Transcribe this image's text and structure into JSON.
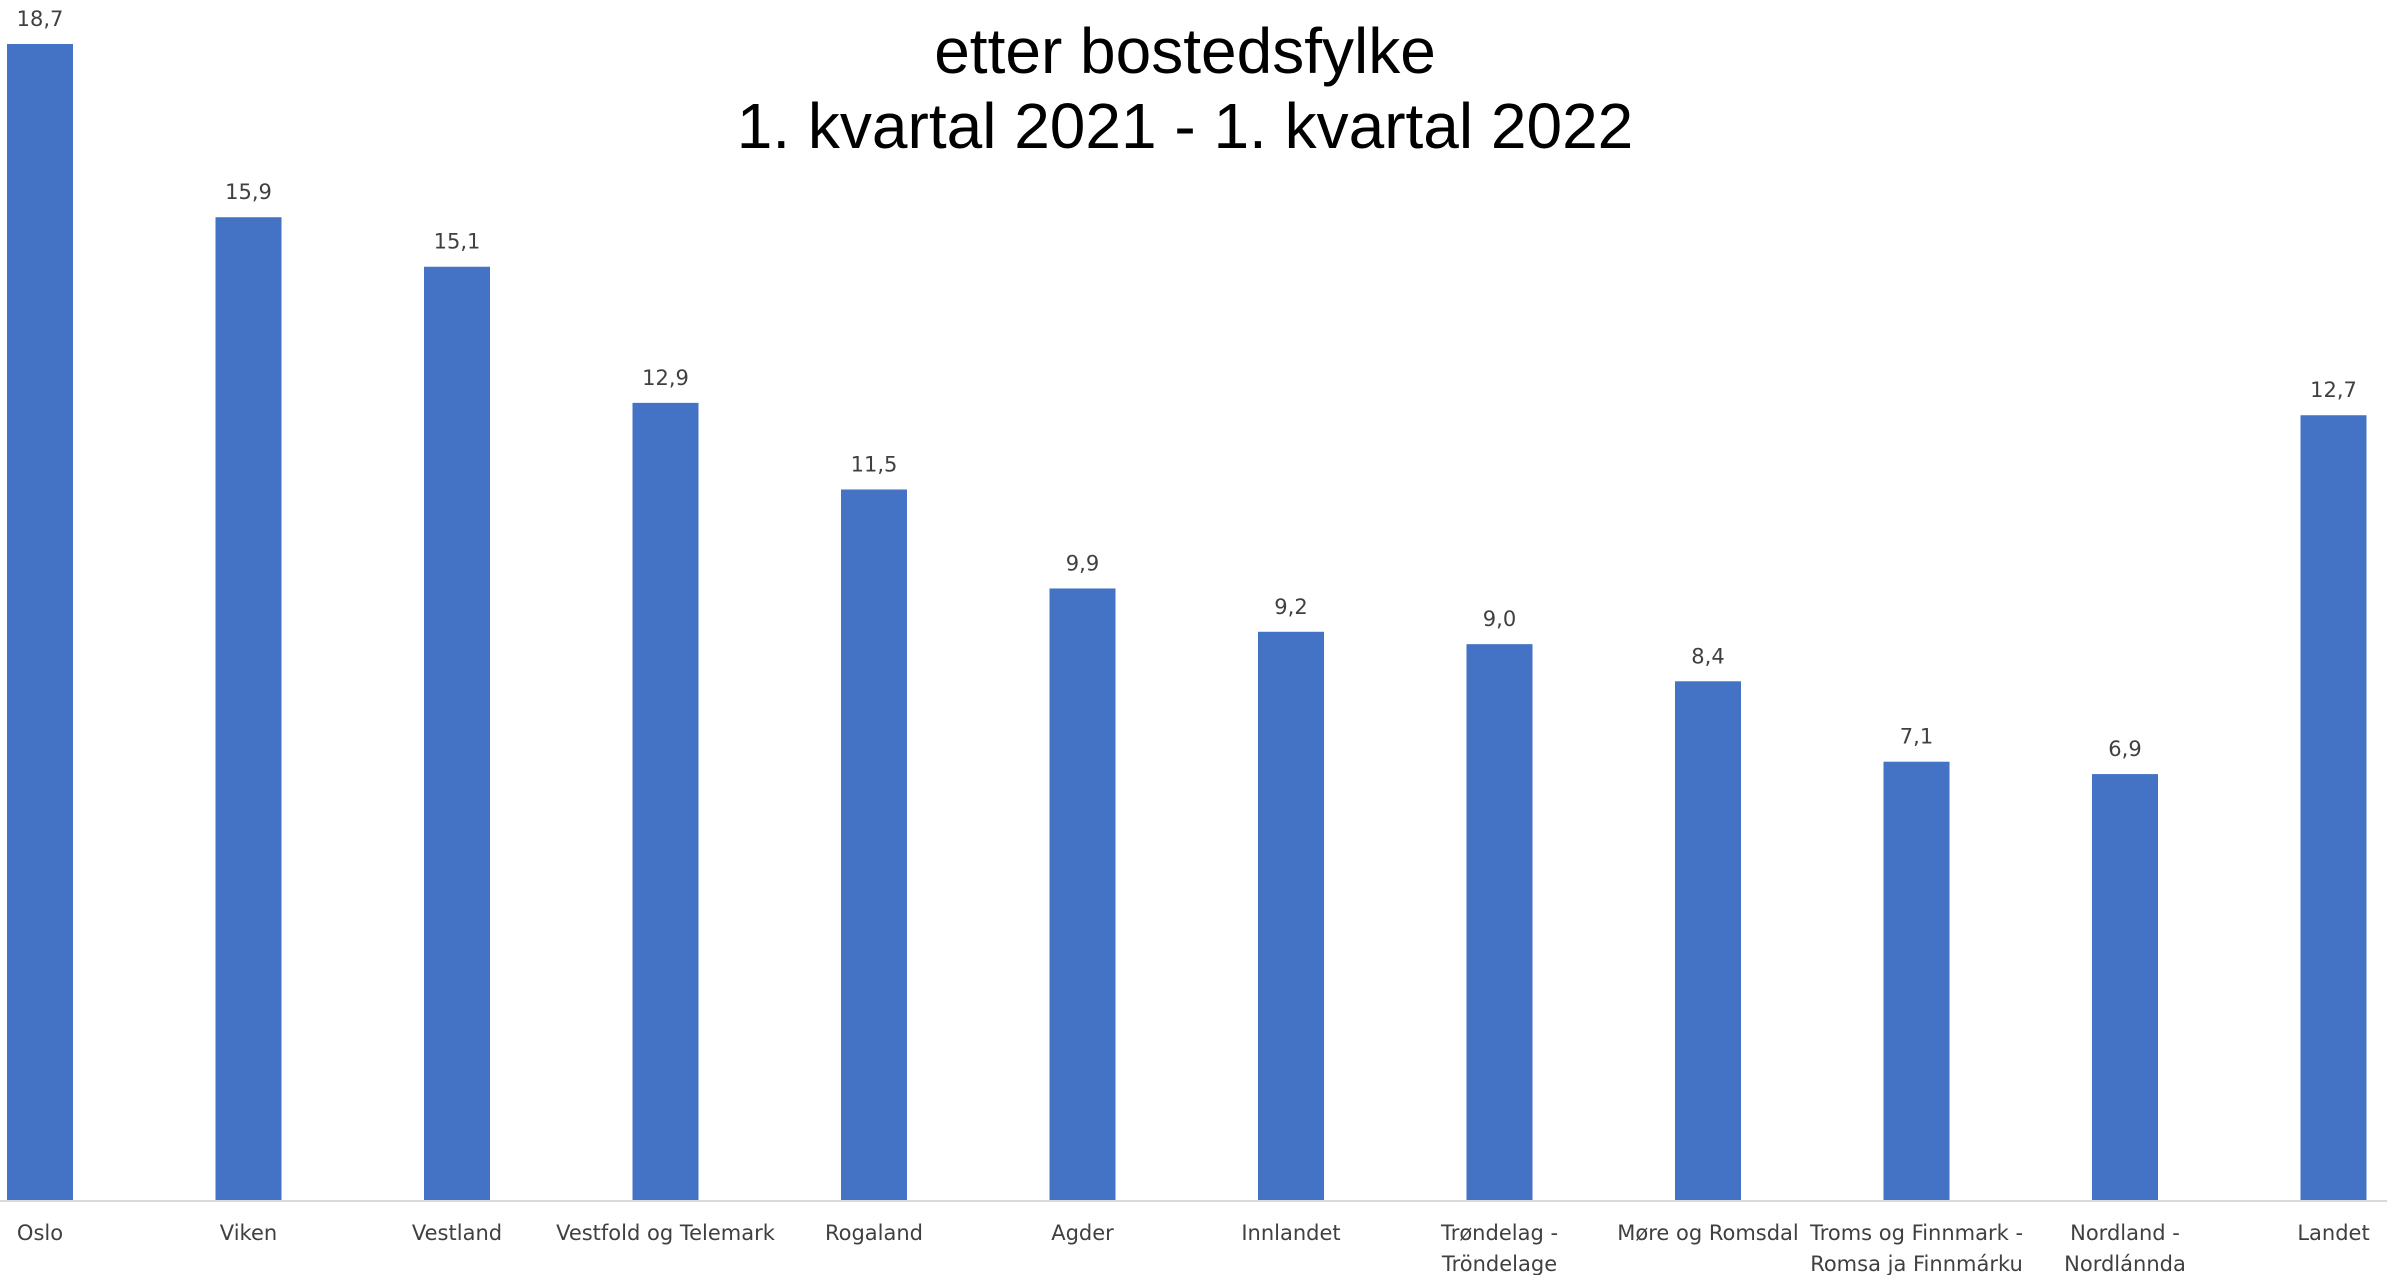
{
  "colors": {
    "bar": "#4472C4",
    "axis": "#d9d9d9",
    "text": "#404040",
    "title": "#000000"
  },
  "chart_data": {
    "type": "bar",
    "title_lines": [
      "etter bostedsfylke",
      "1. kvartal 2021 - 1. kvartal 2022"
    ],
    "categories": [
      [
        "Oslo"
      ],
      [
        "Viken"
      ],
      [
        "Vestland"
      ],
      [
        "Vestfold og Telemark"
      ],
      [
        "Rogaland"
      ],
      [
        "Agder"
      ],
      [
        "Innlandet"
      ],
      [
        "Trøndelag -",
        "Tröndelage"
      ],
      [
        "Møre og Romsdal"
      ],
      [
        "Troms og Finnmark -",
        "Romsa ja Finnmárku"
      ],
      [
        "Nordland -",
        "Nordlánnda"
      ],
      [
        "Landet"
      ]
    ],
    "values": [
      18.7,
      15.9,
      15.1,
      12.9,
      11.5,
      9.9,
      9.2,
      9.0,
      8.4,
      7.1,
      6.9,
      12.7
    ],
    "value_labels": [
      "18,7",
      "15,9",
      "15,1",
      "12,9",
      "11,5",
      "9,9",
      "9,2",
      "9,0",
      "8,4",
      "7,1",
      "6,9",
      "12,7"
    ],
    "ylim": [
      0,
      18.7
    ],
    "grid": false,
    "legend": "none"
  }
}
